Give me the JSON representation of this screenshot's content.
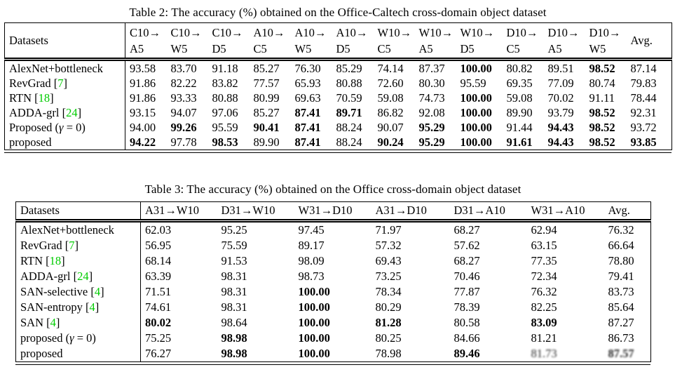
{
  "page": {
    "background": "#ffffff",
    "text_color": "#000000",
    "citation_color": "#00cc00"
  },
  "tables": [
    {
      "caption": "Table 2: The accuracy (%) obtained on the Office-Caltech cross-domain object dataset",
      "datasets_header": "Datasets",
      "avg_header": "Avg.",
      "columns": [
        {
          "from": "C10→",
          "to": "A5"
        },
        {
          "from": "C10→",
          "to": "W5"
        },
        {
          "from": "C10→",
          "to": "D5"
        },
        {
          "from": "A10→",
          "to": "C5"
        },
        {
          "from": "A10→",
          "to": "W5"
        },
        {
          "from": "A10→",
          "to": "D5"
        },
        {
          "from": "W10→",
          "to": "C5"
        },
        {
          "from": "W10→",
          "to": "A5"
        },
        {
          "from": "W10→",
          "to": "D5"
        },
        {
          "from": "D10→",
          "to": "C5"
        },
        {
          "from": "D10→",
          "to": "A5"
        },
        {
          "from": "D10→",
          "to": "W5"
        }
      ],
      "rows": [
        {
          "label": "AlexNet+bottleneck",
          "cells": [
            {
              "v": "93.58"
            },
            {
              "v": "83.70"
            },
            {
              "v": "91.18"
            },
            {
              "v": "85.27"
            },
            {
              "v": "76.30"
            },
            {
              "v": "85.29"
            },
            {
              "v": "74.14"
            },
            {
              "v": "87.37"
            },
            {
              "v": "100.00",
              "b": true
            },
            {
              "v": "80.82"
            },
            {
              "v": "89.51"
            },
            {
              "v": "98.52",
              "b": true
            },
            {
              "v": "87.14"
            }
          ]
        },
        {
          "label": "RevGrad",
          "ref": "7",
          "cells": [
            {
              "v": "91.86"
            },
            {
              "v": "82.22"
            },
            {
              "v": "83.82"
            },
            {
              "v": "77.57"
            },
            {
              "v": "65.93"
            },
            {
              "v": "80.88"
            },
            {
              "v": "72.60"
            },
            {
              "v": "80.30"
            },
            {
              "v": "95.59"
            },
            {
              "v": "69.35"
            },
            {
              "v": "77.09"
            },
            {
              "v": "80.74"
            },
            {
              "v": "79.83"
            }
          ]
        },
        {
          "label": "RTN",
          "ref": "18",
          "cells": [
            {
              "v": "91.86"
            },
            {
              "v": "93.33"
            },
            {
              "v": "80.88"
            },
            {
              "v": "80.99"
            },
            {
              "v": "69.63"
            },
            {
              "v": "70.59"
            },
            {
              "v": "59.08"
            },
            {
              "v": "74.73"
            },
            {
              "v": "100.00",
              "b": true
            },
            {
              "v": "59.08"
            },
            {
              "v": "70.02"
            },
            {
              "v": "91.11"
            },
            {
              "v": "78.44"
            }
          ]
        },
        {
          "label": "ADDA-grl",
          "ref": "24",
          "cells": [
            {
              "v": "93.15"
            },
            {
              "v": "94.07"
            },
            {
              "v": "97.06"
            },
            {
              "v": "85.27"
            },
            {
              "v": "87.41",
              "b": true
            },
            {
              "v": "89.71",
              "b": true
            },
            {
              "v": "86.82"
            },
            {
              "v": "92.08"
            },
            {
              "v": "100.00",
              "b": true
            },
            {
              "v": "89.90"
            },
            {
              "v": "93.79"
            },
            {
              "v": "98.52",
              "b": true
            },
            {
              "v": "92.31"
            }
          ]
        },
        {
          "label": "Proposed (γ = 0)",
          "cells": [
            {
              "v": "94.00"
            },
            {
              "v": "99.26",
              "b": true
            },
            {
              "v": "95.59"
            },
            {
              "v": "90.41",
              "b": true
            },
            {
              "v": "87.41",
              "b": true
            },
            {
              "v": "88.24"
            },
            {
              "v": "90.07"
            },
            {
              "v": "95.29",
              "b": true
            },
            {
              "v": "100.00",
              "b": true
            },
            {
              "v": "91.44"
            },
            {
              "v": "94.43",
              "b": true
            },
            {
              "v": "98.52",
              "b": true
            },
            {
              "v": "93.72"
            }
          ]
        },
        {
          "label": "proposed",
          "cells": [
            {
              "v": "94.22",
              "b": true
            },
            {
              "v": "97.78"
            },
            {
              "v": "98.53",
              "b": true
            },
            {
              "v": "89.90"
            },
            {
              "v": "87.41",
              "b": true
            },
            {
              "v": "88.24"
            },
            {
              "v": "90.24",
              "b": true
            },
            {
              "v": "95.29",
              "b": true
            },
            {
              "v": "100.00",
              "b": true
            },
            {
              "v": "91.61",
              "b": true
            },
            {
              "v": "94.43",
              "b": true
            },
            {
              "v": "98.52",
              "b": true
            },
            {
              "v": "93.85",
              "b": true
            }
          ]
        }
      ]
    },
    {
      "caption": "Table 3: The accuracy (%) obtained on the Office cross-domain object dataset",
      "datasets_header": "Datasets",
      "avg_header": "Avg.",
      "columns": [
        "A31→W10",
        "D31→W10",
        "W31→D10",
        "A31→D10",
        "D31→A10",
        "W31→A10"
      ],
      "rows": [
        {
          "label": "AlexNet+bottleneck",
          "cells": [
            {
              "v": "62.03"
            },
            {
              "v": "95.25"
            },
            {
              "v": "97.45"
            },
            {
              "v": "71.97"
            },
            {
              "v": "68.27"
            },
            {
              "v": "62.94"
            },
            {
              "v": "76.32"
            }
          ]
        },
        {
          "label": "RevGrad",
          "ref": "7",
          "cells": [
            {
              "v": "56.95"
            },
            {
              "v": "75.59"
            },
            {
              "v": "89.17"
            },
            {
              "v": "57.32"
            },
            {
              "v": "57.62"
            },
            {
              "v": "63.15"
            },
            {
              "v": "66.64"
            }
          ]
        },
        {
          "label": "RTN",
          "ref": "18",
          "cells": [
            {
              "v": "68.14"
            },
            {
              "v": "91.53"
            },
            {
              "v": "98.09"
            },
            {
              "v": "69.43"
            },
            {
              "v": "68.27"
            },
            {
              "v": "77.35"
            },
            {
              "v": "78.80"
            }
          ]
        },
        {
          "label": "ADDA-grl",
          "ref": "24",
          "cells": [
            {
              "v": "63.39"
            },
            {
              "v": "98.31"
            },
            {
              "v": "98.73"
            },
            {
              "v": "73.25"
            },
            {
              "v": "70.46"
            },
            {
              "v": "72.34"
            },
            {
              "v": "79.41"
            }
          ]
        },
        {
          "label": "SAN-selective",
          "ref": "4",
          "cells": [
            {
              "v": "71.51"
            },
            {
              "v": "98.31"
            },
            {
              "v": "100.00",
              "b": true
            },
            {
              "v": "78.34"
            },
            {
              "v": "77.87"
            },
            {
              "v": "76.32"
            },
            {
              "v": "83.73"
            }
          ]
        },
        {
          "label": "SAN-entropy",
          "ref": "4",
          "cells": [
            {
              "v": "74.61"
            },
            {
              "v": "98.31"
            },
            {
              "v": "100.00",
              "b": true
            },
            {
              "v": "80.29"
            },
            {
              "v": "78.39"
            },
            {
              "v": "82.25"
            },
            {
              "v": "85.64"
            }
          ]
        },
        {
          "label": "SAN",
          "ref": "4",
          "cells": [
            {
              "v": "80.02",
              "b": true
            },
            {
              "v": "98.64"
            },
            {
              "v": "100.00",
              "b": true
            },
            {
              "v": "81.28",
              "b": true
            },
            {
              "v": "80.58"
            },
            {
              "v": "83.09",
              "b": true
            },
            {
              "v": "87.27"
            }
          ]
        },
        {
          "label": "proposed (γ = 0)",
          "cells": [
            {
              "v": "75.25"
            },
            {
              "v": "98.98",
              "b": true
            },
            {
              "v": "100.00",
              "b": true
            },
            {
              "v": "80.25"
            },
            {
              "v": "84.66"
            },
            {
              "v": "81.21"
            },
            {
              "v": "86.73"
            }
          ]
        },
        {
          "label": "proposed",
          "cells": [
            {
              "v": "76.27"
            },
            {
              "v": "98.98",
              "b": true
            },
            {
              "v": "100.00",
              "b": true
            },
            {
              "v": "78.98"
            },
            {
              "v": "89.46",
              "b": true
            },
            {
              "v": "81.73",
              "blur": true
            },
            {
              "v": "87.57",
              "b": true,
              "blur": true
            }
          ]
        }
      ]
    }
  ]
}
